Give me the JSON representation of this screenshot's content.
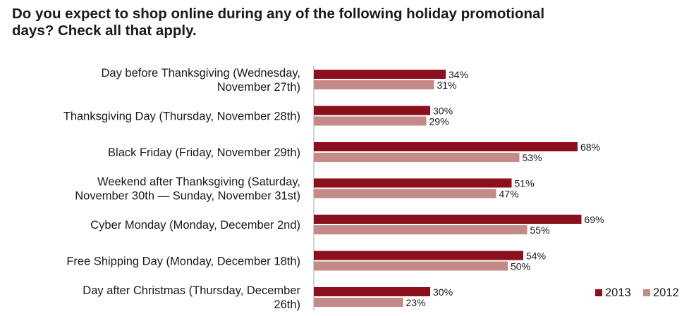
{
  "chart_data": {
    "type": "bar",
    "orientation": "horizontal",
    "title": "Do you expect to shop online during any of the following holiday promotional days? Check all that apply.",
    "categories": [
      [
        "Day before Thanksgiving (Wednesday,",
        "November 27th)"
      ],
      [
        "Thanksgiving Day (Thursday, November 28th)"
      ],
      [
        "Black Friday (Friday, November 29th)"
      ],
      [
        "Weekend after Thanksgiving (Saturday,",
        "November 30th — Sunday, November 31st)"
      ],
      [
        "Cyber Monday (Monday, December 2nd)"
      ],
      [
        "Free Shipping Day (Monday, December 18th)"
      ],
      [
        "Day after Christmas (Thursday, December",
        "26th)"
      ]
    ],
    "series": [
      {
        "name": "2013",
        "color": "#8b0f1c",
        "values": [
          34,
          30,
          68,
          51,
          69,
          54,
          30
        ]
      },
      {
        "name": "2012",
        "color": "#c48a88",
        "values": [
          31,
          29,
          53,
          47,
          55,
          50,
          23
        ]
      }
    ],
    "value_suffix": "%",
    "xlim": [
      0,
      100
    ],
    "grid": false,
    "legend_position": "bottom-right"
  }
}
